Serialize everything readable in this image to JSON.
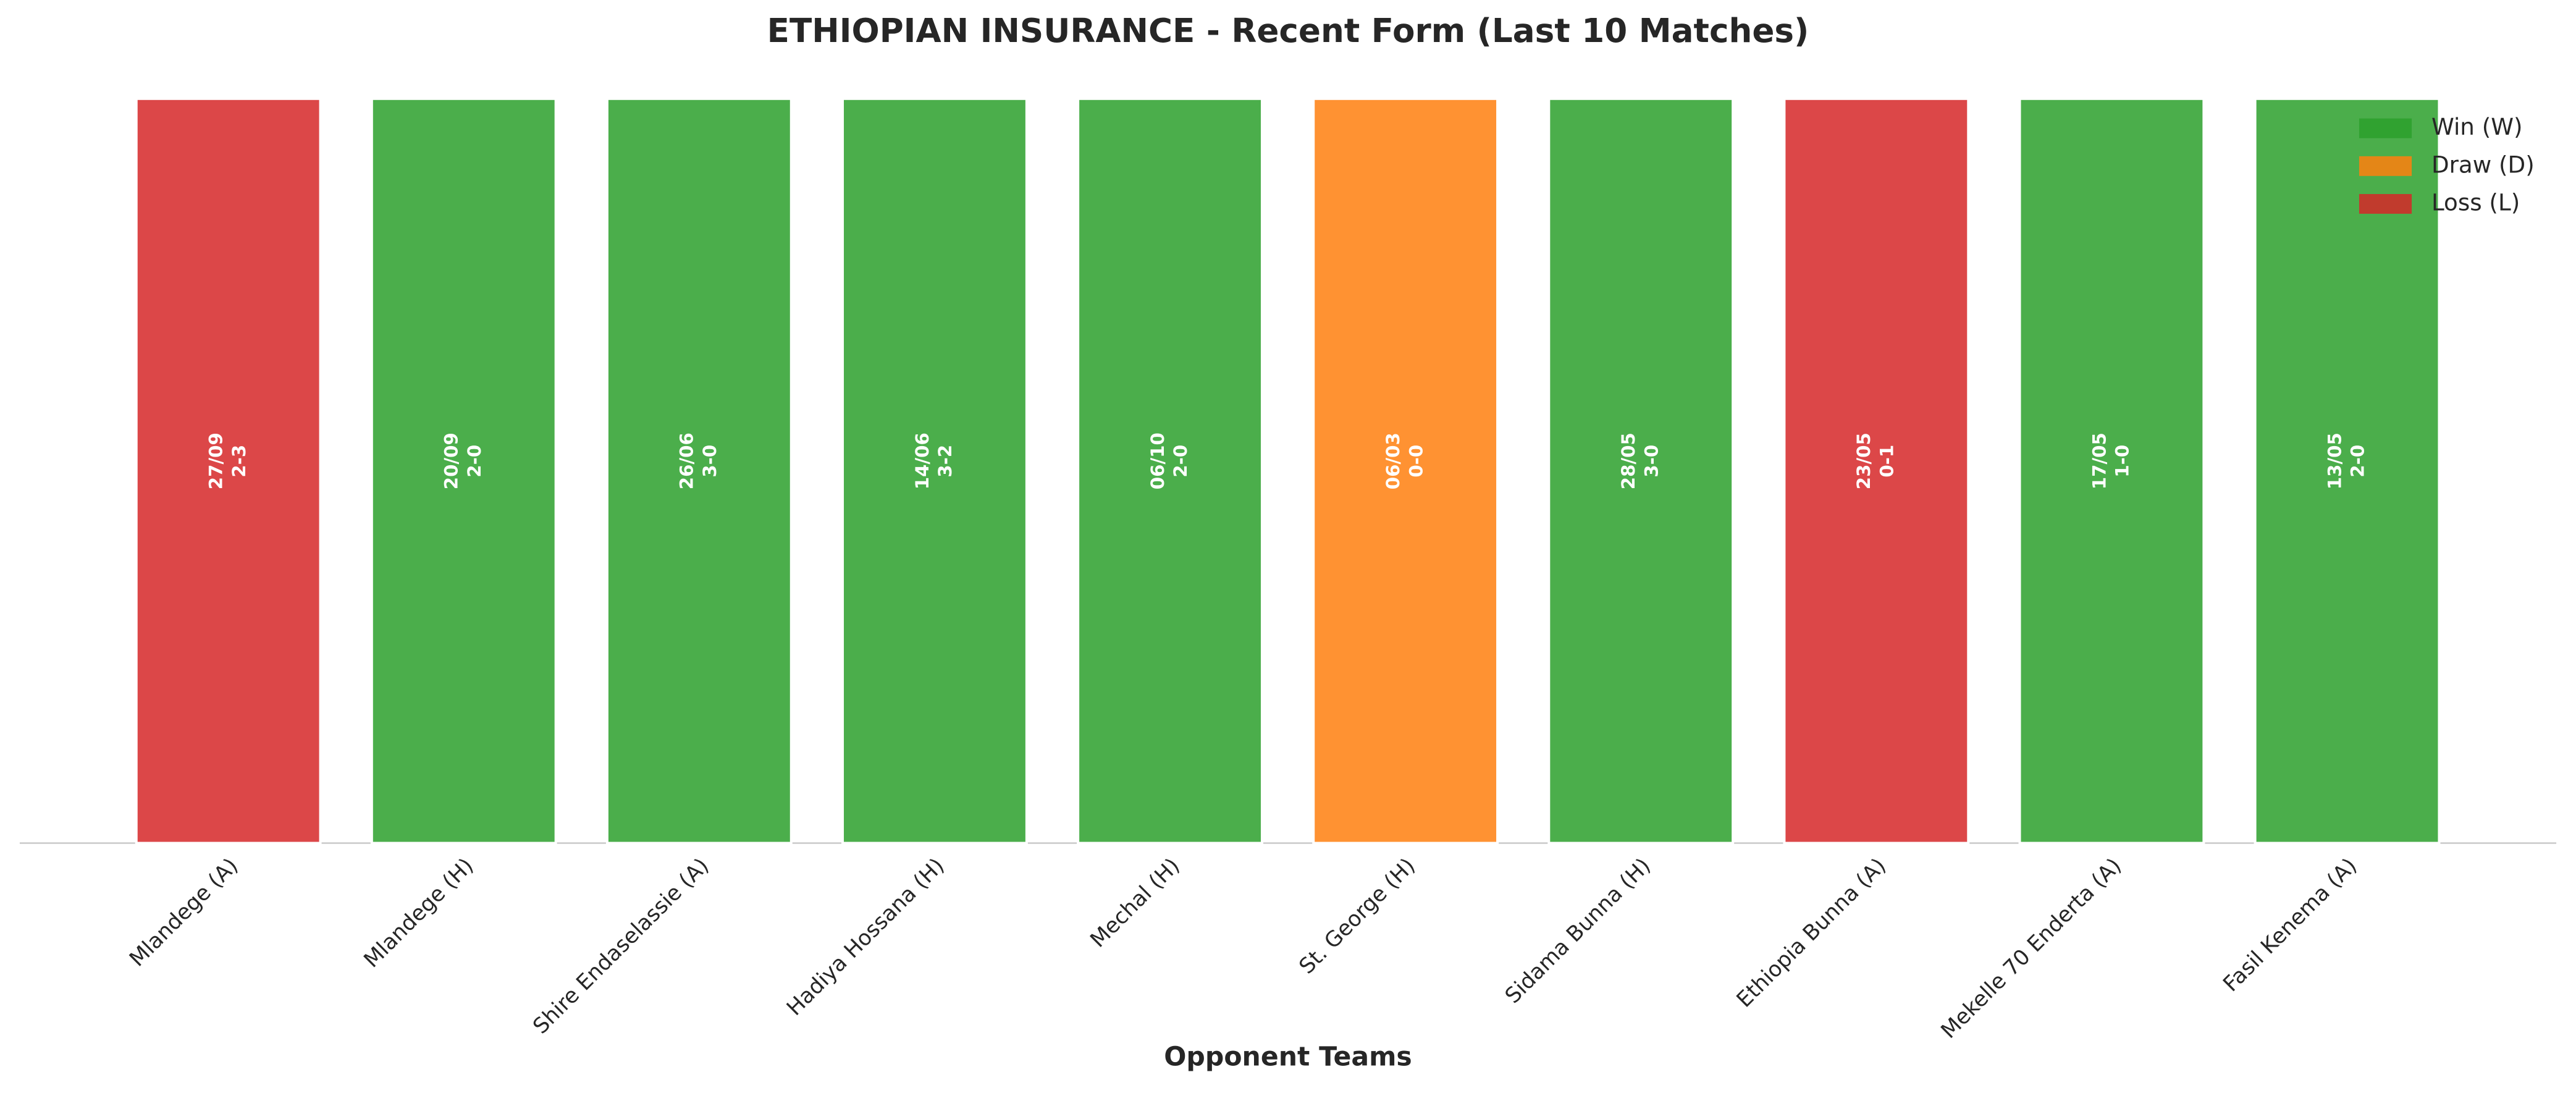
{
  "chart_data": {
    "type": "bar",
    "title": "ETHIOPIAN INSURANCE - Recent Form (Last 10 Matches)",
    "x_label": "Opponent Teams",
    "categories": [
      "Mlandege (A)",
      "Mlandege (H)",
      "Shire Endaselassie (A)",
      "Hadiya Hossana (H)",
      "Mechal (H)",
      "St. George (H)",
      "Sidama Bunna (H)",
      "Ethiopia Bunna (A)",
      "Mekelle 70 Enderta (A)",
      "Fasil Kenema (A)"
    ],
    "series": [
      {
        "name": "Win (W)",
        "color": "#2ca02c",
        "values": [
          null,
          1,
          1,
          1,
          1,
          null,
          1,
          null,
          1,
          1
        ]
      },
      {
        "name": "Draw (D)",
        "color": "#ff7f0e",
        "values": [
          null,
          null,
          null,
          null,
          null,
          1,
          null,
          null,
          null,
          null
        ]
      },
      {
        "name": "Loss (L)",
        "color": "#d62728",
        "values": [
          1,
          null,
          null,
          null,
          null,
          null,
          null,
          1,
          null,
          null
        ]
      }
    ],
    "dates": [
      "27/09",
      "20/09",
      "26/06",
      "14/06",
      "06/10",
      "06/03",
      "28/05",
      "23/05",
      "17/05",
      "13/05"
    ],
    "scores": [
      "2-3",
      "2-0",
      "3-0",
      "3-2",
      "2-0",
      "0-0",
      "3-0",
      "0-1",
      "1-0",
      "2-0"
    ],
    "ylim": [
      0,
      1
    ],
    "legend": "upper right"
  }
}
